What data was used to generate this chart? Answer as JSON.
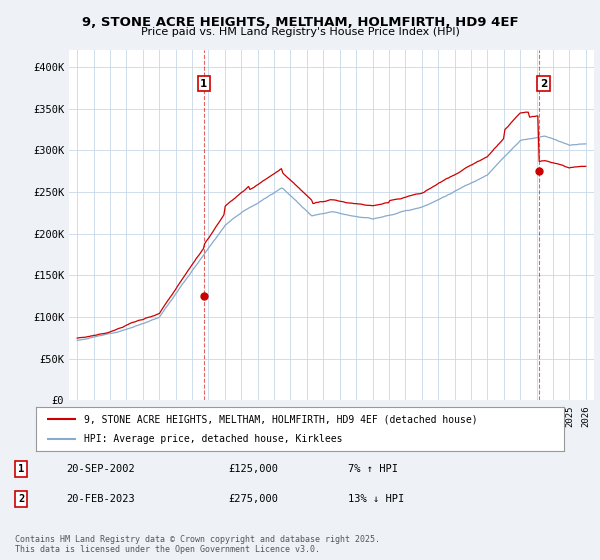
{
  "title": "9, STONE ACRE HEIGHTS, MELTHAM, HOLMFIRTH, HD9 4EF",
  "subtitle": "Price paid vs. HM Land Registry's House Price Index (HPI)",
  "ylim": [
    0,
    420000
  ],
  "yticks": [
    0,
    50000,
    100000,
    150000,
    200000,
    250000,
    300000,
    350000,
    400000
  ],
  "ytick_labels": [
    "£0",
    "£50K",
    "£100K",
    "£150K",
    "£200K",
    "£250K",
    "£300K",
    "£350K",
    "£400K"
  ],
  "xlim_start": 1994.5,
  "xlim_end": 2026.5,
  "red_line_color": "#cc0000",
  "blue_line_color": "#88aacc",
  "point1_x": 2002.72,
  "point1_y": 125000,
  "point1_label": "1",
  "point2_x": 2023.12,
  "point2_y": 275000,
  "point2_label": "2",
  "legend_label_red": "9, STONE ACRE HEIGHTS, MELTHAM, HOLMFIRTH, HD9 4EF (detached house)",
  "legend_label_blue": "HPI: Average price, detached house, Kirklees",
  "transaction1_date": "20-SEP-2002",
  "transaction1_price": "£125,000",
  "transaction1_hpi": "7% ↑ HPI",
  "transaction2_date": "20-FEB-2023",
  "transaction2_price": "£275,000",
  "transaction2_hpi": "13% ↓ HPI",
  "footer": "Contains HM Land Registry data © Crown copyright and database right 2025.\nThis data is licensed under the Open Government Licence v3.0.",
  "bg_color": "#eef2f7",
  "plot_bg_color": "#ffffff",
  "grid_color": "#c8d8e8"
}
